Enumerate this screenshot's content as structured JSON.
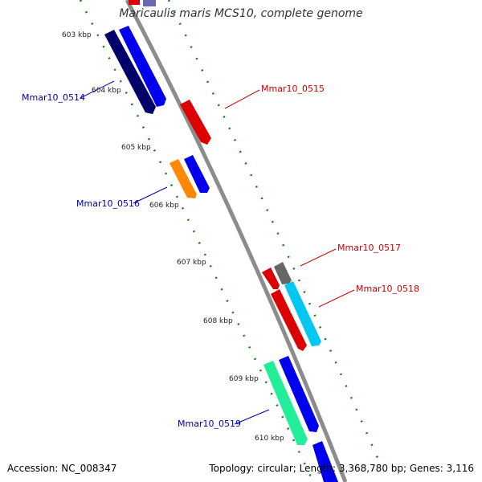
{
  "title": "Maricaulis maris MCS10, complete genome",
  "footer": {
    "accession": "Accession: NC_008347",
    "summary": "Topology: circular; Length: 3,368,780 bp; Genes: 3,116"
  },
  "ticks": [
    "603 kbp",
    "604 kbp",
    "605 kbp",
    "606 kbp",
    "607 kbp",
    "608 kbp",
    "609 kbp",
    "610 kbp"
  ],
  "gene_labels": {
    "g0514": "Mmar10_0514",
    "g0515": "Mmar10_0515",
    "g0516": "Mmar10_0516",
    "g0517": "Mmar10_0517",
    "g0518": "Mmar10_0518",
    "g0519": "Mmar10_0519"
  },
  "colors": {
    "forward_label": "#0000aa",
    "reverse_label": "#cc0000",
    "tick": "#1a7a1a",
    "backbone": "#8c8c8c"
  }
}
